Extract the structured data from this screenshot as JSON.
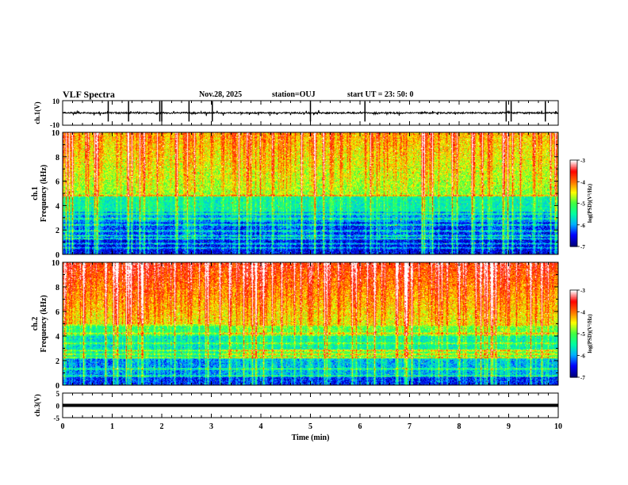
{
  "header": {
    "title": "VLF Spectra",
    "date": "Nov.28, 2025",
    "station": "station=OUJ",
    "start_ut": "start  UT =   23: 50: 0"
  },
  "colors": {
    "colormap": [
      "#000080",
      "#0000ff",
      "#00b0ff",
      "#00ffa0",
      "#40ff40",
      "#ffff00",
      "#ff7000",
      "#ff0000",
      "#ffffff"
    ]
  },
  "chart_data": [
    {
      "type": "line",
      "id": "ch1-waveform",
      "ylabel": "ch.1(V)",
      "ylim": [
        -10,
        10
      ],
      "yticks": [
        "10",
        "-10"
      ],
      "xlim": [
        0,
        10
      ],
      "baseline_v": 0.0,
      "noise_amplitude_v": 1.0,
      "spike_times_min": [
        0.92,
        1.33,
        1.96,
        2.0,
        2.55,
        3.02,
        5.0,
        6.1,
        8.95,
        9.05,
        9.74
      ]
    },
    {
      "type": "heatmap",
      "id": "ch1-spectrogram",
      "ylabel_line1": "ch.1",
      "ylabel_line2": "Frequency (kHz)",
      "ylim": [
        0,
        10
      ],
      "yticks": [
        "0",
        "2",
        "4",
        "6",
        "8",
        "10"
      ],
      "xlim": [
        0,
        10
      ],
      "lines_khz": [
        0.5,
        0.85,
        1.25,
        1.5,
        1.9,
        2.4,
        2.9,
        3.3,
        4.8
      ],
      "colorbar": {
        "label": "log(PSD)(V²/Hz)",
        "range": [
          -7,
          -3
        ],
        "ticks": [
          "-3",
          "-4",
          "-5",
          "-6",
          "-7"
        ]
      }
    },
    {
      "type": "heatmap",
      "id": "ch2-spectrogram",
      "ylabel_line1": "ch.2",
      "ylabel_line2": "Frequency (kHz)",
      "ylim": [
        0,
        10
      ],
      "yticks": [
        "0",
        "2",
        "4",
        "6",
        "8",
        "10"
      ],
      "xlim": [
        0,
        10
      ],
      "lines_khz": [
        0.7,
        1.3,
        2.2,
        2.5,
        2.8,
        3.4,
        4.2,
        4.9
      ],
      "colorbar": {
        "label": "log(PSD)(V²/Hz)",
        "range": [
          -7,
          -3
        ],
        "ticks": [
          "-3",
          "-4",
          "-5",
          "-6",
          "-7"
        ]
      }
    },
    {
      "type": "line",
      "id": "ch3-waveform",
      "ylabel": "ch.3(V)",
      "ylim": [
        -5,
        5
      ],
      "yticks": [
        "5",
        "0",
        "-5"
      ],
      "xlim": [
        0,
        10
      ],
      "baseline_v": 0.0,
      "xlabel": "Time (min)",
      "xticks": [
        "0",
        "1",
        "2",
        "3",
        "4",
        "5",
        "6",
        "7",
        "8",
        "9",
        "10"
      ]
    }
  ]
}
